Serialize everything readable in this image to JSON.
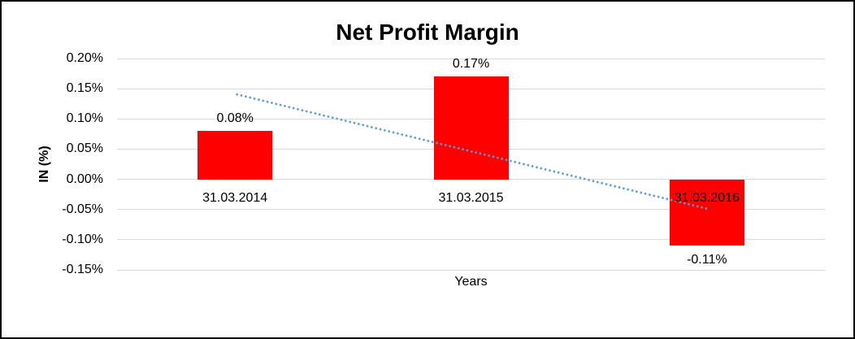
{
  "window": {
    "background": "#ffffff",
    "border_color": "#000000"
  },
  "chart_data": {
    "type": "bar",
    "title": "Net Profit Margin",
    "xlabel": "Years",
    "ylabel": "IN (%)",
    "categories": [
      "31.03.2014",
      "31.03.2015",
      "31.03.2016"
    ],
    "values": [
      0.08,
      0.17,
      -0.11
    ],
    "data_labels": [
      "0.08%",
      "0.17%",
      "-0.11%"
    ],
    "yticks": [
      {
        "value": 0.2,
        "label": "0.20%"
      },
      {
        "value": 0.15,
        "label": "0.15%"
      },
      {
        "value": 0.1,
        "label": "0.10%"
      },
      {
        "value": 0.05,
        "label": "0.05%"
      },
      {
        "value": 0.0,
        "label": "0.00%"
      },
      {
        "value": -0.05,
        "label": "-0.05%"
      },
      {
        "value": -0.1,
        "label": "-0.10%"
      },
      {
        "value": -0.15,
        "label": "-0.15%"
      }
    ],
    "ylim": [
      -0.15,
      0.2
    ],
    "grid": true,
    "legend": "none",
    "bar_color": "#ff0000",
    "gridline_color": "#d9d9d9",
    "text_color": "#000000",
    "trendline": {
      "type": "linear",
      "style": "dotted",
      "color": "#5b9bd5",
      "start_value": 0.142,
      "end_value": -0.048
    }
  }
}
